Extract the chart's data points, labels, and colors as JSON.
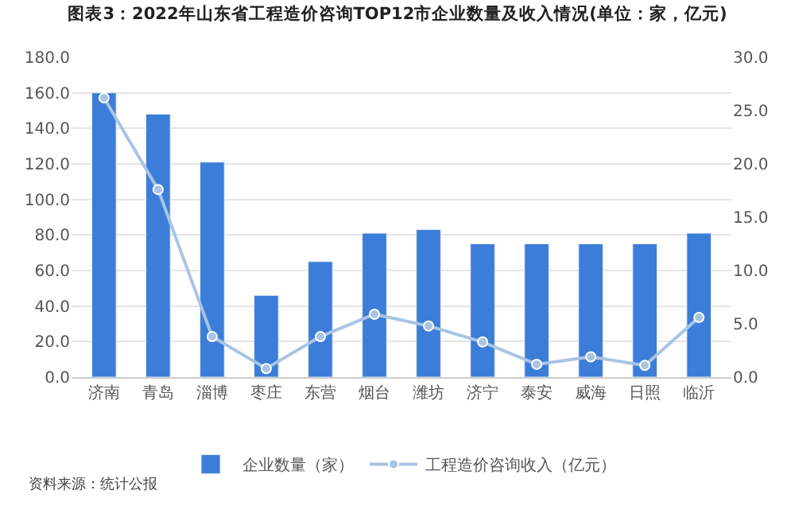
{
  "chart_data": {
    "type": "bar",
    "title": "图表3：2022年山东省工程造价咨询TOP12市企业数量及收入情况(单位：家，亿元)",
    "categories": [
      "济南",
      "青岛",
      "淄博",
      "枣庄",
      "东营",
      "烟台",
      "潍坊",
      "济宁",
      "泰安",
      "威海",
      "日照",
      "临沂"
    ],
    "series": [
      {
        "name": "企业数量（家）",
        "color": "#3b7dd8",
        "values": [
          160,
          148,
          121,
          46,
          65,
          81,
          83,
          75,
          75,
          75,
          75,
          81
        ]
      },
      {
        "name": "工程造价咨询收入（亿元）",
        "type": "line",
        "axis": "y2",
        "color": "#a9c4e4",
        "marker": "circle",
        "values": [
          26.2,
          17.6,
          3.8,
          0.8,
          3.8,
          5.9,
          4.8,
          3.3,
          1.2,
          1.9,
          1.1,
          5.6
        ]
      }
    ],
    "ylim": [
      0,
      180
    ],
    "yticks": [
      {
        "value": 0,
        "label": "0.0"
      },
      {
        "value": 20,
        "label": "20.0"
      },
      {
        "value": 40,
        "label": "40.0"
      },
      {
        "value": 60,
        "label": "60.0"
      },
      {
        "value": 80,
        "label": "80.0"
      },
      {
        "value": 100,
        "label": "100.0"
      },
      {
        "value": 120,
        "label": "120.0"
      },
      {
        "value": 140,
        "label": "140.0"
      },
      {
        "value": 160,
        "label": "160.0"
      },
      {
        "value": 180,
        "label": "180.0"
      }
    ],
    "y2lim": [
      0,
      30
    ],
    "y2ticks": [
      {
        "value": 0,
        "label": "0.0"
      },
      {
        "value": 5,
        "label": "5.0"
      },
      {
        "value": 10,
        "label": "10.0"
      },
      {
        "value": 15,
        "label": "15.0"
      },
      {
        "value": 20,
        "label": "20.0"
      },
      {
        "value": 25,
        "label": "25.0"
      },
      {
        "value": 30,
        "label": "30.0"
      }
    ],
    "grid": "y",
    "legend": "bottom",
    "annotations": [
      "资料来源：统计公报"
    ]
  }
}
